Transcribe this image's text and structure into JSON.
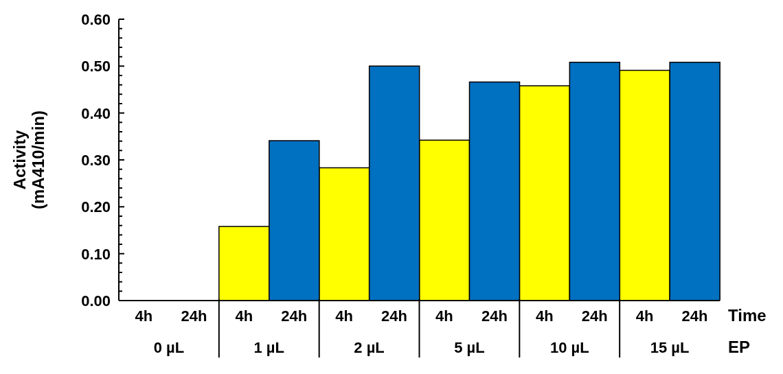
{
  "chart_data": {
    "type": "bar",
    "ylabel": "Activity\n(mA410/min)",
    "xlabel": "EP",
    "legend_title": "Time",
    "categories": [
      "0 µL",
      "1 µL",
      "2 µL",
      "5 µL",
      "10 µL",
      "15 µL"
    ],
    "series": [
      {
        "name": "4h",
        "color": "#ffff00",
        "values": [
          0,
          0.158,
          0.283,
          0.342,
          0.458,
          0.491
        ]
      },
      {
        "name": "24h",
        "color": "#0070c0",
        "values": [
          0,
          0.341,
          0.5,
          0.466,
          0.508,
          0.508
        ]
      }
    ],
    "ylim": [
      0,
      0.6
    ],
    "yticks": [
      {
        "value": 0,
        "label": "0.00"
      },
      {
        "value": 0.02,
        "label": null
      },
      {
        "value": 0.04,
        "label": null
      },
      {
        "value": 0.06,
        "label": null
      },
      {
        "value": 0.08,
        "label": null
      },
      {
        "value": 0.1,
        "label": "0.10"
      },
      {
        "value": 0.12,
        "label": null
      },
      {
        "value": 0.14,
        "label": null
      },
      {
        "value": 0.16,
        "label": null
      },
      {
        "value": 0.18,
        "label": null
      },
      {
        "value": 0.2,
        "label": "0.20"
      },
      {
        "value": 0.22,
        "label": null
      },
      {
        "value": 0.24,
        "label": null
      },
      {
        "value": 0.26,
        "label": null
      },
      {
        "value": 0.28,
        "label": null
      },
      {
        "value": 0.3,
        "label": "0.30"
      },
      {
        "value": 0.32,
        "label": null
      },
      {
        "value": 0.34,
        "label": null
      },
      {
        "value": 0.36,
        "label": null
      },
      {
        "value": 0.38,
        "label": null
      },
      {
        "value": 0.4,
        "label": "0.40"
      },
      {
        "value": 0.42,
        "label": null
      },
      {
        "value": 0.44,
        "label": null
      },
      {
        "value": 0.46,
        "label": null
      },
      {
        "value": 0.48,
        "label": null
      },
      {
        "value": 0.5,
        "label": "0.50"
      },
      {
        "value": 0.52,
        "label": null
      },
      {
        "value": 0.54,
        "label": null
      },
      {
        "value": 0.56,
        "label": null
      },
      {
        "value": 0.58,
        "label": null
      },
      {
        "value": 0.6,
        "label": "0.60"
      }
    ]
  }
}
